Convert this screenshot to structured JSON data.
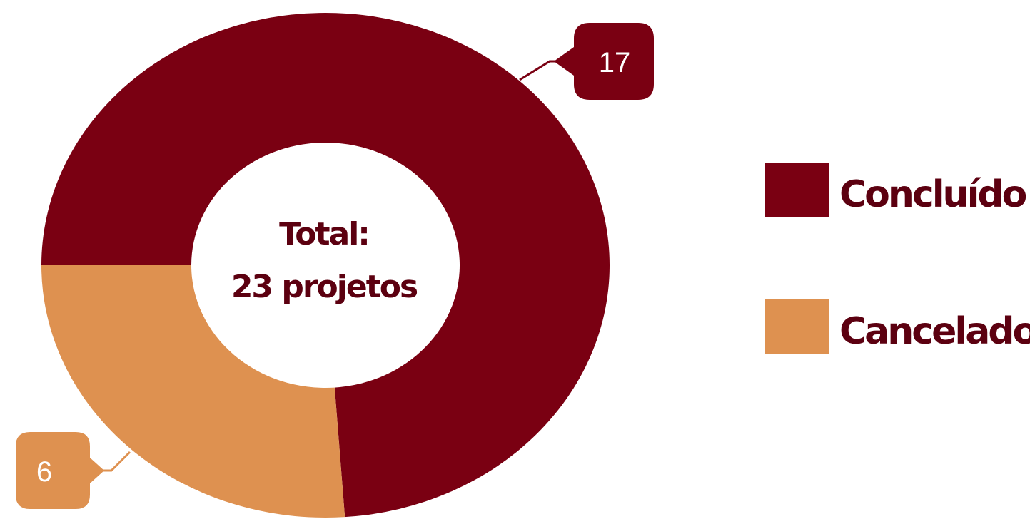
{
  "chart_data": {
    "type": "pie",
    "donut": true,
    "categories": [
      "Concluído",
      "Cancelado"
    ],
    "values": [
      17,
      6
    ],
    "colors": [
      "#7a0012",
      "#de9150"
    ],
    "center_label": [
      "Total:",
      "23 projetos"
    ],
    "data_labels": [
      "17",
      "6"
    ],
    "legend": {
      "placement": "right",
      "entries": [
        "Concluído",
        "Cancelado"
      ]
    }
  }
}
